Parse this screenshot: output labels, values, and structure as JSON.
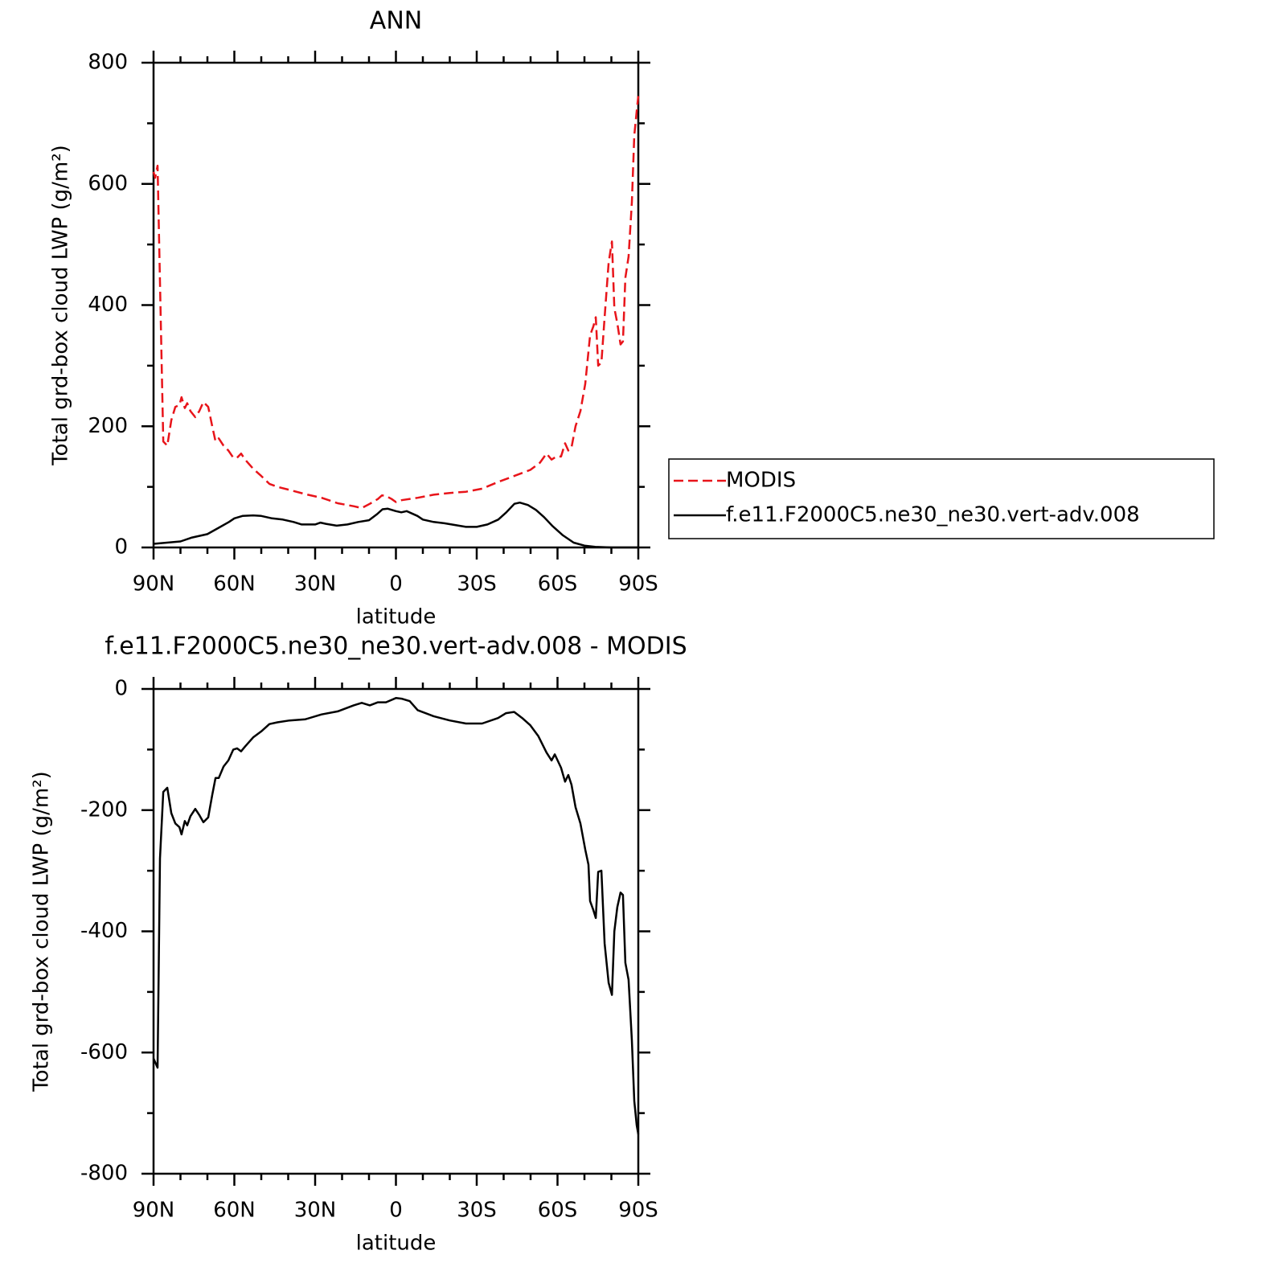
{
  "chart_data": [
    {
      "type": "line",
      "title": "ANN",
      "xlabel": "latitude",
      "ylabel": "Total grd-box cloud LWP (g/m²)",
      "xlim": [
        90,
        -90
      ],
      "xticks": [
        {
          "value": 90,
          "label": "90N"
        },
        {
          "value": 60,
          "label": "60N"
        },
        {
          "value": 30,
          "label": "30N"
        },
        0,
        {
          "value": -30,
          "label": "30S"
        },
        {
          "value": -60,
          "label": "60S"
        },
        {
          "value": -90,
          "label": "90S"
        }
      ],
      "xminorticks": [
        80,
        70,
        50,
        40,
        20,
        10,
        -10,
        -20,
        -40,
        -50,
        -70,
        -80
      ],
      "ylim": [
        0,
        800
      ],
      "yticks": [
        0,
        200,
        400,
        600,
        800
      ],
      "yminorticks": [
        100,
        300,
        500,
        700
      ],
      "legend": "right",
      "series": [
        {
          "name": "MODIS",
          "color": "#e8141a",
          "line_style": "dashed",
          "x": [
            90,
            89.4,
            88.5,
            86.4,
            84.9,
            83.4,
            81.9,
            80.4,
            79.6,
            78.4,
            77.5,
            76.3,
            74.5,
            73.0,
            71.5,
            69.7,
            68.2,
            67.0,
            65.8,
            64.0,
            62.2,
            60.4,
            59.0,
            57.5,
            56.0,
            53.0,
            50.0,
            47.0,
            44.0,
            39.5,
            33.6,
            27.6,
            21.6,
            15.7,
            12.7,
            9.7,
            6.7,
            5.2,
            3.7,
            1.6,
            0,
            -2.1,
            -8.1,
            -14.0,
            -20.0,
            -26.0,
            -32.0,
            -37.9,
            -43.9,
            -49.9,
            -53.5,
            -55.9,
            -57.8,
            -59.6,
            -61.3,
            -62.8,
            -64.0,
            -65.2,
            -66.7,
            -68.5,
            -70.3,
            -72.1,
            -73.3,
            -74.2,
            -75.1,
            -76.3,
            -77.5,
            -79.0,
            -80.2,
            -81.1,
            -82.2,
            -83.4,
            -84.3,
            -85.2,
            -86.4,
            -87.6,
            -88.5,
            -89.4,
            -90
          ],
          "values": [
            620,
            610,
            630,
            175,
            168,
            210,
            232,
            235,
            248,
            230,
            238,
            225,
            215,
            225,
            240,
            232,
            200,
            175,
            180,
            168,
            160,
            148,
            148,
            155,
            145,
            130,
            118,
            105,
            100,
            95,
            88,
            82,
            73,
            68,
            65,
            72,
            80,
            86,
            85,
            80,
            75,
            78,
            82,
            87,
            90,
            92,
            97,
            108,
            118,
            128,
            140,
            155,
            145,
            150,
            150,
            172,
            160,
            165,
            200,
            225,
            270,
            350,
            365,
            380,
            300,
            305,
            380,
            470,
            505,
            395,
            370,
            335,
            340,
            445,
            480,
            570,
            680,
            720,
            745
          ]
        },
        {
          "name": "f.e11.F2000C5.ne30_ne30.vert-adv.008",
          "color": "#000000",
          "line_style": "solid",
          "x": [
            90,
            80,
            76,
            70,
            66,
            62,
            60,
            57,
            53,
            50,
            46,
            42,
            38,
            35,
            32,
            30,
            28,
            26,
            22,
            18,
            14,
            10,
            7,
            5,
            3,
            0,
            -2,
            -4,
            -6,
            -8,
            -10,
            -14,
            -18,
            -22,
            -26,
            -30,
            -34,
            -38,
            -41,
            -44,
            -46,
            -49,
            -52,
            -55,
            -58,
            -62,
            -66,
            -70,
            -74,
            -80,
            -90
          ],
          "values": [
            6,
            10,
            16,
            22,
            32,
            42,
            48,
            52,
            53,
            52,
            48,
            46,
            42,
            38,
            38,
            38,
            41,
            39,
            36,
            38,
            42,
            45,
            55,
            63,
            64,
            60,
            58,
            60,
            56,
            52,
            46,
            42,
            40,
            37,
            34,
            34,
            38,
            46,
            58,
            72,
            74,
            70,
            62,
            50,
            36,
            20,
            8,
            3,
            1,
            0,
            0
          ]
        }
      ]
    },
    {
      "type": "line",
      "title": "f.e11.F2000C5.ne30_ne30.vert-adv.008 - MODIS",
      "xlabel": "latitude",
      "ylabel": "Total grd-box cloud LWP (g/m²)",
      "xlim": [
        90,
        -90
      ],
      "xticks": [
        {
          "value": 90,
          "label": "90N"
        },
        {
          "value": 60,
          "label": "60N"
        },
        {
          "value": 30,
          "label": "30N"
        },
        0,
        {
          "value": -30,
          "label": "30S"
        },
        {
          "value": -60,
          "label": "60S"
        },
        {
          "value": -90,
          "label": "90S"
        }
      ],
      "xminorticks": [
        80,
        70,
        50,
        40,
        20,
        10,
        -10,
        -20,
        -40,
        -50,
        -70,
        -80
      ],
      "ylim": [
        -800,
        0
      ],
      "yticks": [
        -800,
        -600,
        -400,
        -200,
        0
      ],
      "yminorticks": [
        -700,
        -500,
        -300,
        -100
      ],
      "series": [
        {
          "color": "#000000",
          "line_style": "solid",
          "x": [
            90,
            88.5,
            87.6,
            86.4,
            84.9,
            83.4,
            81.9,
            80.4,
            79.6,
            78.4,
            77.5,
            76.3,
            74.5,
            73.0,
            71.5,
            69.7,
            68.2,
            67.0,
            65.8,
            64.0,
            62.2,
            60.4,
            59.0,
            57.5,
            56.0,
            53.0,
            50.0,
            47.0,
            44.0,
            39.5,
            33.6,
            27.6,
            21.6,
            15.7,
            12.7,
            9.7,
            6.7,
            3.7,
            0,
            -2.1,
            -5.1,
            -8.1,
            -14.0,
            -20.0,
            -26.0,
            -32.0,
            -37.9,
            -40.9,
            -43.9,
            -46.9,
            -49.9,
            -52.9,
            -55.9,
            -57.8,
            -59.0,
            -61.3,
            -62.8,
            -64.0,
            -65.2,
            -66.7,
            -68.5,
            -70.3,
            -71.5,
            -72.1,
            -73.3,
            -74.2,
            -75.1,
            -76.3,
            -77.5,
            -79.0,
            -80.2,
            -81.1,
            -82.2,
            -83.4,
            -84.3,
            -85.2,
            -86.4,
            -87.6,
            -88.5,
            -89.4,
            -90
          ],
          "values": [
            -610,
            -625,
            -280,
            -170,
            -163,
            -205,
            -222,
            -228,
            -240,
            -218,
            -225,
            -210,
            -198,
            -208,
            -220,
            -212,
            -175,
            -147,
            -147,
            -128,
            -118,
            -100,
            -98,
            -103,
            -95,
            -80,
            -70,
            -58,
            -55,
            -52,
            -50,
            -42,
            -37,
            -27,
            -23,
            -27,
            -22,
            -22,
            -15,
            -16,
            -20,
            -35,
            -45,
            -52,
            -57,
            -57,
            -48,
            -40,
            -38,
            -48,
            -60,
            -78,
            -105,
            -118,
            -108,
            -130,
            -153,
            -142,
            -158,
            -195,
            -222,
            -265,
            -290,
            -350,
            -365,
            -378,
            -302,
            -300,
            -420,
            -485,
            -505,
            -400,
            -360,
            -336,
            -340,
            -452,
            -480,
            -580,
            -680,
            -720,
            -735
          ]
        }
      ]
    }
  ]
}
